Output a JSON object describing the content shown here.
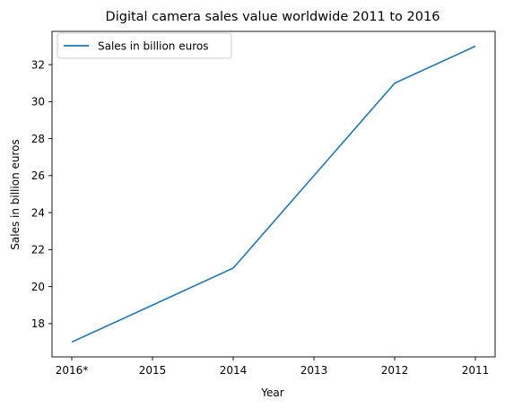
{
  "chart_data": {
    "type": "line",
    "title": "Digital camera sales value worldwide 2011 to 2016",
    "xlabel": "Year",
    "ylabel": "Sales in billion euros",
    "categories": [
      "2016*",
      "2015",
      "2014",
      "2013",
      "2012",
      "2011"
    ],
    "series": [
      {
        "name": "Sales in billion euros",
        "values": [
          17,
          19,
          21,
          26,
          31,
          33
        ],
        "color": "#1f77b4"
      }
    ],
    "ylim": [
      16.2,
      33.8
    ],
    "yticks": [
      18,
      20,
      22,
      24,
      26,
      28,
      30,
      32
    ],
    "grid": false,
    "legend_position": "top-left"
  }
}
